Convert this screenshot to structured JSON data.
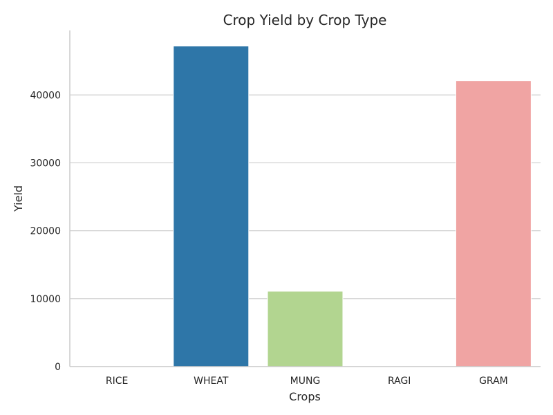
{
  "chart_data": {
    "type": "bar",
    "title": "Crop Yield by Crop Type",
    "xlabel": "Crops",
    "ylabel": "Yield",
    "categories": [
      "RICE",
      "WHEAT",
      "MUNG",
      "RAGI",
      "GRAM"
    ],
    "values": [
      0,
      47200,
      11100,
      0,
      42100
    ],
    "colors": [
      "#a6cee3",
      "#2e76a8",
      "#b2d590",
      "#33a02c",
      "#f0a4a3"
    ],
    "ylim": [
      0,
      49500
    ],
    "yticks": [
      0,
      10000,
      20000,
      30000,
      40000
    ],
    "ytick_labels": [
      "0",
      "10000",
      "20000",
      "30000",
      "40000"
    ],
    "grid": "horizontal",
    "legend": "none"
  }
}
